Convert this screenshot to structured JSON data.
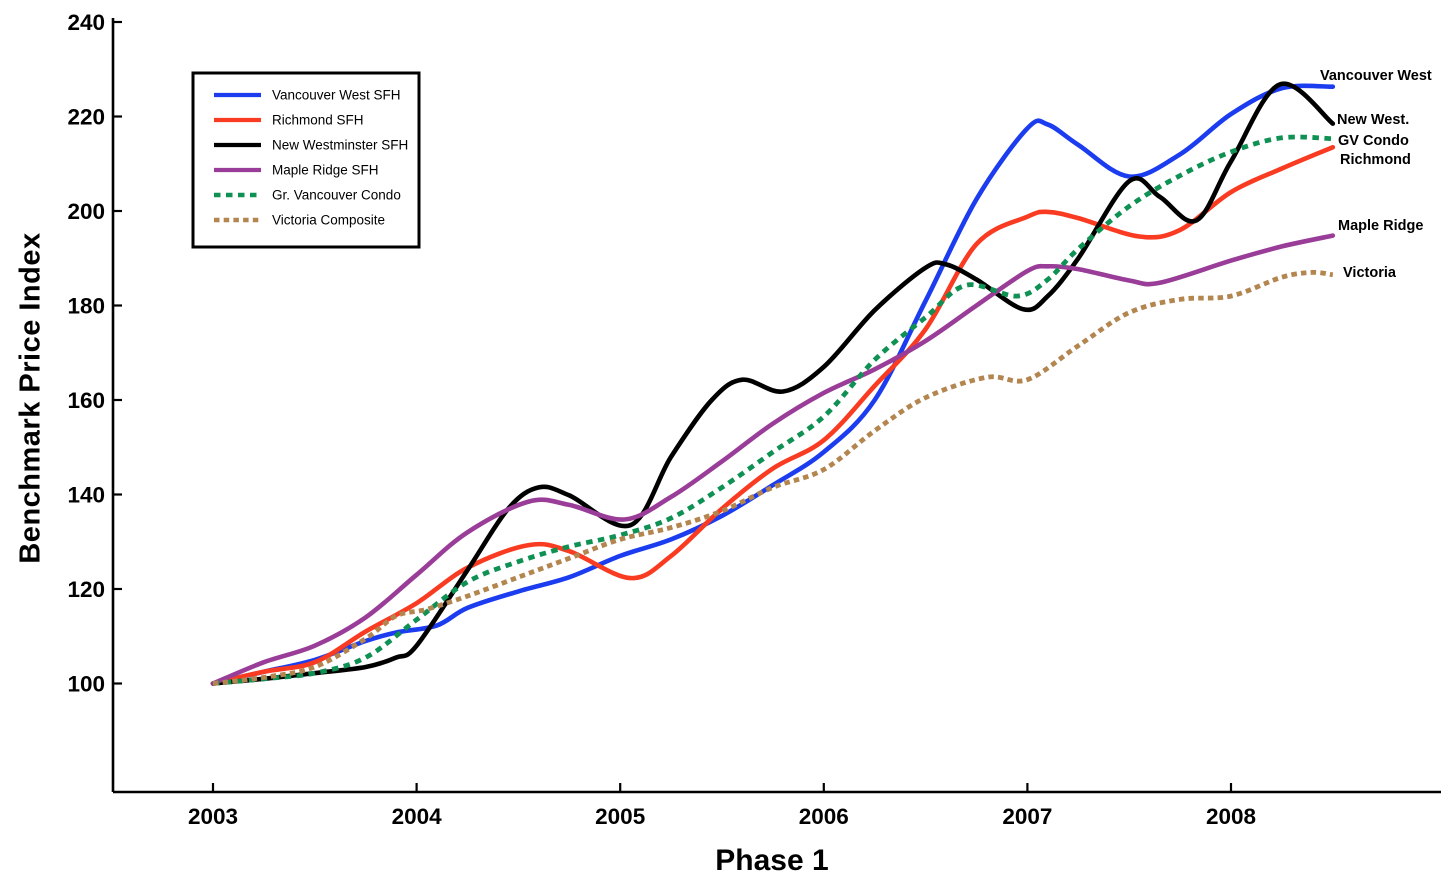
{
  "chart_data": {
    "type": "line",
    "title": "",
    "xlabel": "Phase 1",
    "ylabel": "Benchmark Price Index",
    "x_ticks": [
      2003,
      2004,
      2005,
      2006,
      2007,
      2008
    ],
    "y_ticks": [
      100,
      120,
      140,
      160,
      180,
      200,
      220,
      240
    ],
    "xlim": [
      2002.5,
      2009.03
    ],
    "ylim": [
      77,
      240
    ],
    "grid": false,
    "legend_position": "top-left",
    "series": [
      {
        "name": "Vancouver West SFH",
        "end_label": "Vancouver West",
        "color": "#1B3CEF",
        "style": "solid",
        "points": [
          [
            2003,
            100
          ],
          [
            2003.25,
            102.5
          ],
          [
            2003.5,
            105
          ],
          [
            2003.75,
            109
          ],
          [
            2003.9,
            110.8
          ],
          [
            2004.1,
            112.3
          ],
          [
            2004.25,
            116
          ],
          [
            2004.5,
            119.5
          ],
          [
            2004.75,
            122.5
          ],
          [
            2005,
            127
          ],
          [
            2005.25,
            130.5
          ],
          [
            2005.5,
            135.5
          ],
          [
            2005.75,
            142
          ],
          [
            2006,
            149
          ],
          [
            2006.25,
            160
          ],
          [
            2006.5,
            181
          ],
          [
            2006.75,
            202.5
          ],
          [
            2007,
            217.5
          ],
          [
            2007.1,
            218.3
          ],
          [
            2007.25,
            214
          ],
          [
            2007.5,
            207.3
          ],
          [
            2007.75,
            212
          ],
          [
            2008,
            220.5
          ],
          [
            2008.25,
            226
          ],
          [
            2008.5,
            226.3
          ]
        ]
      },
      {
        "name": "Richmond SFH",
        "end_label": "Richmond",
        "color": "#F93B22",
        "style": "solid",
        "points": [
          [
            2003,
            100
          ],
          [
            2003.25,
            102.5
          ],
          [
            2003.5,
            104.5
          ],
          [
            2003.75,
            111
          ],
          [
            2004,
            117
          ],
          [
            2004.25,
            124.5
          ],
          [
            2004.55,
            129.3
          ],
          [
            2004.75,
            128
          ],
          [
            2005.05,
            122.3
          ],
          [
            2005.25,
            127
          ],
          [
            2005.5,
            137
          ],
          [
            2005.75,
            145.5
          ],
          [
            2006,
            151.5
          ],
          [
            2006.25,
            163
          ],
          [
            2006.5,
            175
          ],
          [
            2006.75,
            193
          ],
          [
            2007,
            198.8
          ],
          [
            2007.1,
            199.8
          ],
          [
            2007.25,
            198.5
          ],
          [
            2007.55,
            194.6
          ],
          [
            2007.75,
            196
          ],
          [
            2008,
            204
          ],
          [
            2008.25,
            209
          ],
          [
            2008.5,
            213.5
          ]
        ]
      },
      {
        "name": "New Westminster SFH",
        "end_label": "New West.",
        "color": "#000000",
        "style": "solid",
        "points": [
          [
            2003,
            100
          ],
          [
            2003.25,
            101
          ],
          [
            2003.5,
            102.2
          ],
          [
            2003.75,
            103.5
          ],
          [
            2003.9,
            105.5
          ],
          [
            2004,
            108
          ],
          [
            2004.25,
            124
          ],
          [
            2004.45,
            137
          ],
          [
            2004.6,
            141.5
          ],
          [
            2004.75,
            139.8
          ],
          [
            2005.05,
            133.5
          ],
          [
            2005.25,
            148
          ],
          [
            2005.45,
            160
          ],
          [
            2005.6,
            164.3
          ],
          [
            2005.8,
            161.8
          ],
          [
            2006,
            167
          ],
          [
            2006.25,
            179
          ],
          [
            2006.5,
            188
          ],
          [
            2006.6,
            188.7
          ],
          [
            2006.75,
            185.5
          ],
          [
            2006.98,
            179.2
          ],
          [
            2007.1,
            182
          ],
          [
            2007.25,
            190
          ],
          [
            2007.5,
            206.3
          ],
          [
            2007.65,
            203
          ],
          [
            2007.83,
            198
          ],
          [
            2008,
            210.5
          ],
          [
            2008.24,
            226.8
          ],
          [
            2008.5,
            218.5
          ]
        ]
      },
      {
        "name": "Maple Ridge SFH",
        "end_label": "Maple Ridge",
        "color": "#993D98",
        "style": "solid",
        "points": [
          [
            2003,
            100
          ],
          [
            2003.25,
            104.5
          ],
          [
            2003.5,
            108
          ],
          [
            2003.75,
            114
          ],
          [
            2004,
            123
          ],
          [
            2004.25,
            132
          ],
          [
            2004.55,
            138.5
          ],
          [
            2004.75,
            137.8
          ],
          [
            2005.02,
            134.7
          ],
          [
            2005.25,
            139.5
          ],
          [
            2005.5,
            147
          ],
          [
            2005.75,
            155
          ],
          [
            2006,
            161.5
          ],
          [
            2006.25,
            166.5
          ],
          [
            2006.5,
            172.5
          ],
          [
            2006.75,
            180
          ],
          [
            2007,
            187.3
          ],
          [
            2007.1,
            188.3
          ],
          [
            2007.25,
            187.7
          ],
          [
            2007.5,
            185.3
          ],
          [
            2007.65,
            184.8
          ],
          [
            2008,
            189.5
          ],
          [
            2008.25,
            192.5
          ],
          [
            2008.5,
            194.8
          ]
        ]
      },
      {
        "name": "Gr. Vancouver Condo",
        "end_label": "GV Condo",
        "color": "#0F9154",
        "style": "dashed",
        "points": [
          [
            2003,
            100
          ],
          [
            2003.25,
            101
          ],
          [
            2003.5,
            102.2
          ],
          [
            2003.75,
            105.5
          ],
          [
            2004,
            113.5
          ],
          [
            2004.25,
            121.5
          ],
          [
            2004.5,
            125.8
          ],
          [
            2004.75,
            129
          ],
          [
            2005,
            131.4
          ],
          [
            2005.25,
            135
          ],
          [
            2005.5,
            141.5
          ],
          [
            2005.75,
            149
          ],
          [
            2006,
            156.5
          ],
          [
            2006.25,
            168.5
          ],
          [
            2006.5,
            177.5
          ],
          [
            2006.7,
            184.3
          ],
          [
            2006.95,
            182
          ],
          [
            2007.1,
            185.5
          ],
          [
            2007.25,
            192
          ],
          [
            2007.5,
            201
          ],
          [
            2007.75,
            207.5
          ],
          [
            2008,
            212.5
          ],
          [
            2008.25,
            215.5
          ],
          [
            2008.5,
            215.3
          ]
        ]
      },
      {
        "name": "Victoria Composite",
        "end_label": "Victoria",
        "color": "#B3854F",
        "style": "dashed",
        "points": [
          [
            2003,
            100
          ],
          [
            2003.25,
            101.3
          ],
          [
            2003.5,
            103.5
          ],
          [
            2003.75,
            109.5
          ],
          [
            2003.9,
            114.3
          ],
          [
            2004.05,
            115.7
          ],
          [
            2004.25,
            118.5
          ],
          [
            2004.5,
            122.5
          ],
          [
            2004.75,
            126.5
          ],
          [
            2005,
            130.5
          ],
          [
            2005.25,
            133
          ],
          [
            2005.5,
            136.5
          ],
          [
            2005.75,
            141.5
          ],
          [
            2006,
            145.3
          ],
          [
            2006.25,
            153.5
          ],
          [
            2006.5,
            160.5
          ],
          [
            2006.8,
            164.8
          ],
          [
            2007,
            164.3
          ],
          [
            2007.25,
            171.5
          ],
          [
            2007.5,
            178.5
          ],
          [
            2007.75,
            181.3
          ],
          [
            2008,
            182
          ],
          [
            2008.25,
            186
          ],
          [
            2008.4,
            187
          ],
          [
            2008.5,
            186.5
          ]
        ]
      }
    ]
  },
  "axis_color": "#000000",
  "legend": {
    "border_color": "#000000",
    "background": "#ffffff"
  }
}
